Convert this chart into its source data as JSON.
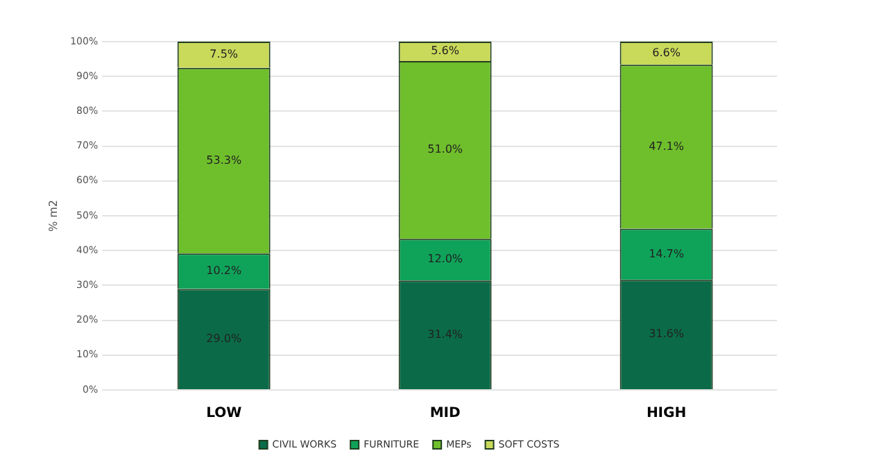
{
  "chart_data": {
    "type": "bar",
    "stacked": true,
    "ylabel": "% m2",
    "categories": [
      "LOW",
      "MID",
      "HIGH"
    ],
    "series": [
      {
        "name": "CIVIL WORKS",
        "color": "#0b6b48",
        "values": [
          29.0,
          31.4,
          31.6
        ],
        "value_labels": [
          "29.0%",
          "31.4%",
          "31.6%"
        ]
      },
      {
        "name": "FURNITURE",
        "color": "#0fa35a",
        "values": [
          10.2,
          12.0,
          14.7
        ],
        "value_labels": [
          "10.2%",
          "12.0%",
          "14.7%"
        ]
      },
      {
        "name": "MEPs",
        "color": "#6fbf2c",
        "values": [
          53.3,
          51.0,
          47.1
        ],
        "value_labels": [
          "53.3%",
          "51.0%",
          "47.1%"
        ]
      },
      {
        "name": "SOFT COSTS",
        "color": "#c9d95a",
        "values": [
          7.5,
          5.6,
          6.6
        ],
        "value_labels": [
          "7.5%",
          "5.6%",
          "6.6%"
        ]
      }
    ],
    "ylim": [
      0,
      100
    ],
    "yticks": [
      {
        "value": 0,
        "label": "0%"
      },
      {
        "value": 10,
        "label": "10%"
      },
      {
        "value": 20,
        "label": "20%"
      },
      {
        "value": 30,
        "label": "30%"
      },
      {
        "value": 40,
        "label": "40%"
      },
      {
        "value": 50,
        "label": "50%"
      },
      {
        "value": 60,
        "label": "60%"
      },
      {
        "value": 70,
        "label": "70%"
      },
      {
        "value": 80,
        "label": "80%"
      },
      {
        "value": 90,
        "label": "90%"
      },
      {
        "value": 100,
        "label": "100%"
      }
    ],
    "grid": "y",
    "legend": "bottom"
  }
}
